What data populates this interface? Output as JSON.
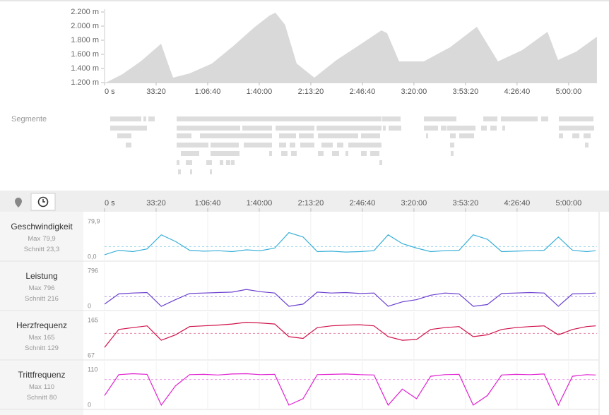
{
  "elevation": {
    "type": "area",
    "color": "#d9d9d9",
    "x": [
      55,
      700,
      1400,
      2192,
      2450,
      2658,
      3300,
      4164,
      5000,
      5800,
      6400,
      6630,
      7000,
      7452,
      8137,
      9000,
      10000,
      10740,
      10959,
      11425,
      12384,
      13400,
      14438,
      15260,
      16200,
      17178,
      17589,
      18300,
      19096
    ],
    "values": [
      1200,
      1320,
      1500,
      1750,
      1480,
      1270,
      1330,
      1470,
      1720,
      1980,
      2150,
      2190,
      2020,
      1470,
      1270,
      1520,
      1760,
      1940,
      1900,
      1500,
      1500,
      1700,
      1990,
      1500,
      1660,
      1920,
      1520,
      1640,
      1850
    ],
    "ylim": [
      1200,
      2200
    ],
    "yticks": [
      {
        "value": 1200,
        "label": "1.200 m"
      },
      {
        "value": 1400,
        "label": "1.400 m"
      },
      {
        "value": 1600,
        "label": "1.600 m"
      },
      {
        "value": 1800,
        "label": "1.800 m"
      },
      {
        "value": 2000,
        "label": "2.000 m"
      },
      {
        "value": 2200,
        "label": "2.200 m"
      }
    ],
    "xlim": [
      0,
      19100
    ],
    "xticks": [
      {
        "value": 0,
        "label": "0 s"
      },
      {
        "value": 2000,
        "label": "33:20"
      },
      {
        "value": 4000,
        "label": "1:06:40"
      },
      {
        "value": 6000,
        "label": "1:40:00"
      },
      {
        "value": 8000,
        "label": "2:13:20"
      },
      {
        "value": 10000,
        "label": "2:46:40"
      },
      {
        "value": 12000,
        "label": "3:20:00"
      },
      {
        "value": 14000,
        "label": "3:53:20"
      },
      {
        "value": 16000,
        "label": "4:26:40"
      },
      {
        "value": 18000,
        "label": "5:00:00"
      }
    ]
  },
  "segments_label": "Segmente",
  "metrics": {
    "x": [
      0,
      550,
      1100,
      1650,
      2200,
      2750,
      3300,
      3850,
      4400,
      4950,
      5500,
      6050,
      6600,
      7150,
      7700,
      8250,
      8800,
      9350,
      9900,
      10450,
      11000,
      11550,
      12100,
      12650,
      13200,
      13750,
      14300,
      14850,
      15400,
      15950,
      16500,
      17050,
      17600,
      18150,
      18700,
      19050
    ],
    "max_label": "Max",
    "avg_label": "Schnitt",
    "series": [
      {
        "name": "Geschwindigkeit",
        "color": "#3ab0d8",
        "values": [
          5,
          15,
          12,
          18,
          50,
          35,
          15,
          13,
          14,
          12,
          16,
          14,
          20,
          55,
          45,
          12,
          13,
          11,
          12,
          14,
          50,
          30,
          20,
          12,
          14,
          15,
          50,
          40,
          12,
          13,
          14,
          15,
          45,
          15,
          12,
          14
        ],
        "max": {
          "value": 79.9,
          "label": "79,9"
        },
        "avg": {
          "value": 23.3,
          "label": "23,3"
        },
        "ylim": [
          0,
          79.9
        ],
        "yticks": [
          {
            "value": 0,
            "label": "0,0"
          },
          {
            "value": 79.9,
            "label": "79,9"
          }
        ]
      },
      {
        "name": "Leistung",
        "color": "#6a3fd0",
        "values": [
          50,
          280,
          300,
          310,
          0,
          150,
          290,
          300,
          310,
          320,
          380,
          330,
          300,
          0,
          50,
          320,
          300,
          310,
          290,
          300,
          0,
          100,
          150,
          250,
          300,
          280,
          0,
          40,
          290,
          300,
          310,
          300,
          0,
          280,
          290,
          300
        ],
        "max": 796,
        "avg": 216,
        "ylim": [
          0,
          796
        ],
        "yticks": [
          0,
          796
        ]
      },
      {
        "name": "Herzfrequenz",
        "color": "#d0104a",
        "values": [
          90,
          140,
          145,
          150,
          110,
          125,
          148,
          150,
          152,
          155,
          160,
          158,
          155,
          120,
          115,
          145,
          150,
          152,
          153,
          150,
          120,
          110,
          112,
          140,
          145,
          148,
          120,
          125,
          140,
          145,
          148,
          150,
          125,
          140,
          148,
          150
        ],
        "max": 165,
        "avg": 129,
        "ylim": [
          67,
          165
        ],
        "yticks": [
          67,
          165
        ]
      },
      {
        "name": "Trittfrequenz",
        "color": "#e020d0",
        "values": [
          30,
          95,
          98,
          96,
          0,
          60,
          95,
          96,
          94,
          97,
          98,
          95,
          96,
          0,
          20,
          95,
          96,
          97,
          95,
          94,
          0,
          50,
          20,
          90,
          95,
          96,
          0,
          30,
          94,
          96,
          95,
          97,
          0,
          90,
          95,
          94
        ],
        "max": 110,
        "avg": 80,
        "ylim": [
          0,
          110
        ],
        "yticks": [
          0,
          110
        ]
      }
    ]
  }
}
